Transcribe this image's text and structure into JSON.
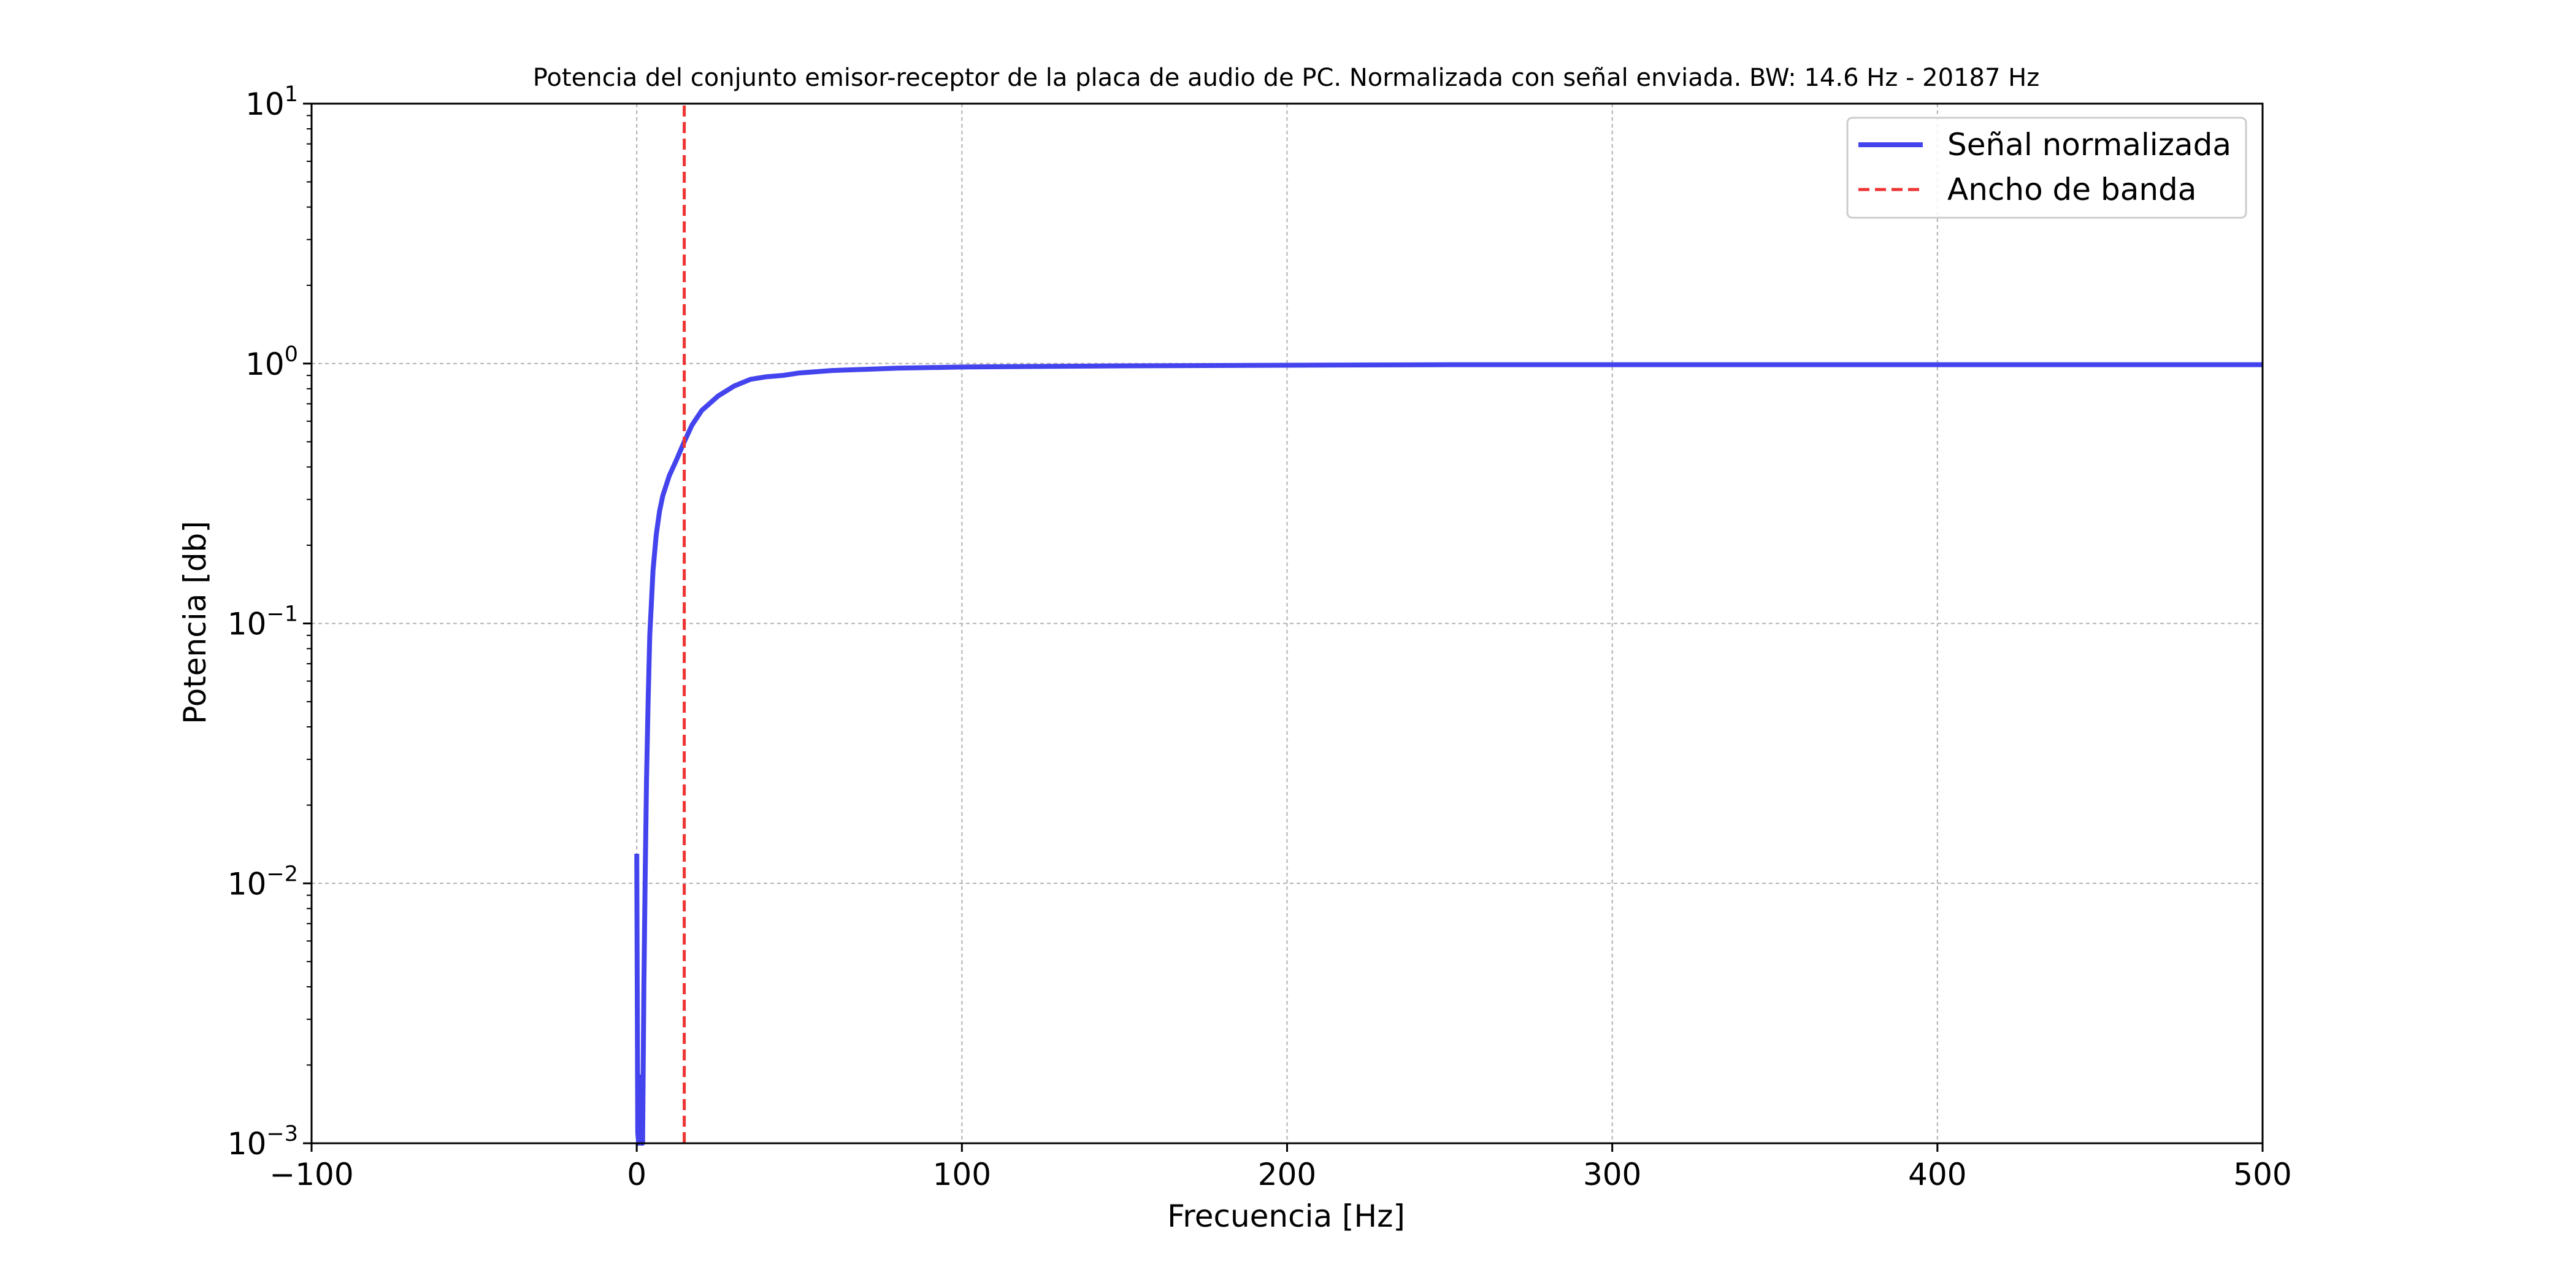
{
  "chart_data": {
    "type": "line",
    "title": "Potencia del conjunto emisor-receptor de la placa de audio de PC. Normalizada con señal enviada. BW: 14.6 Hz - 20187 Hz",
    "xlabel": "Frecuencia [Hz]",
    "ylabel": "Potencia [db]",
    "xlim": [
      -100,
      500
    ],
    "ylim": [
      0.001,
      10
    ],
    "yscale": "log",
    "grid": true,
    "legend_position": "top-right",
    "x_ticks": [
      {
        "value": -100,
        "label": "−100"
      },
      {
        "value": 0,
        "label": "0"
      },
      {
        "value": 100,
        "label": "100"
      },
      {
        "value": 200,
        "label": "200"
      },
      {
        "value": 300,
        "label": "300"
      },
      {
        "value": 400,
        "label": "400"
      },
      {
        "value": 500,
        "label": "500"
      }
    ],
    "y_ticks": [
      {
        "value": 0.001,
        "base": "10",
        "exp": "−3"
      },
      {
        "value": 0.01,
        "base": "10",
        "exp": "−2"
      },
      {
        "value": 0.1,
        "base": "10",
        "exp": "−1"
      },
      {
        "value": 1,
        "base": "10",
        "exp": "0"
      },
      {
        "value": 10,
        "base": "10",
        "exp": "1"
      }
    ],
    "series": [
      {
        "name": "Señal normalizada",
        "color": "#4444ee",
        "style": "solid",
        "x": [
          0,
          0.3,
          0.6,
          1.0,
          1.4,
          1.8,
          2.2,
          2.6,
          3.0,
          3.5,
          4,
          5,
          6,
          7,
          8,
          10,
          12,
          14.6,
          17,
          20,
          25,
          30,
          35,
          40,
          45,
          50,
          60,
          70,
          80,
          100,
          150,
          200,
          250,
          300,
          350,
          400,
          450,
          500
        ],
        "y": [
          0.013,
          0.0011,
          0.001,
          0.0018,
          0.001,
          0.001,
          0.004,
          0.011,
          0.025,
          0.05,
          0.09,
          0.16,
          0.22,
          0.27,
          0.31,
          0.37,
          0.42,
          0.5,
          0.58,
          0.66,
          0.75,
          0.82,
          0.87,
          0.89,
          0.9,
          0.92,
          0.94,
          0.95,
          0.96,
          0.97,
          0.98,
          0.985,
          0.99,
          0.99,
          0.99,
          0.99,
          0.99,
          0.99
        ]
      },
      {
        "name": "Ancho de banda",
        "color": "#ee3333",
        "style": "dashed",
        "x": [
          14.6,
          14.6
        ],
        "y": [
          0.001,
          10
        ]
      }
    ]
  }
}
